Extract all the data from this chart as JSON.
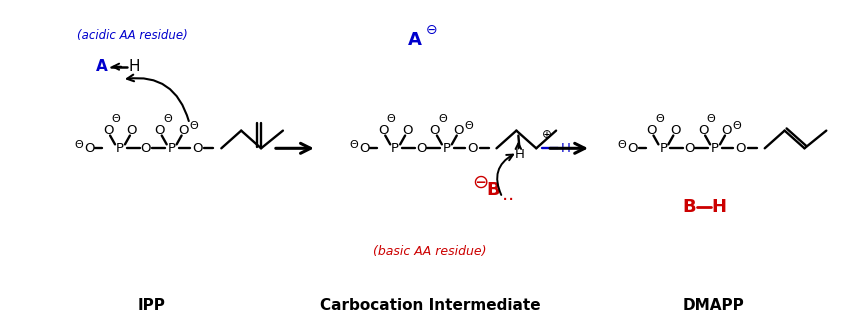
{
  "bg_color": "#ffffff",
  "black": "#000000",
  "blue": "#0000cd",
  "red": "#cc0000",
  "label_ipp": "IPP",
  "label_carbocation": "Carbocation Intermediate",
  "label_dmapp": "DMAPP",
  "label_acidic": "(acidic AA residue)",
  "label_basic": "(basic AA residue)",
  "fig_w": 8.44,
  "fig_h": 3.33,
  "dpi": 100
}
